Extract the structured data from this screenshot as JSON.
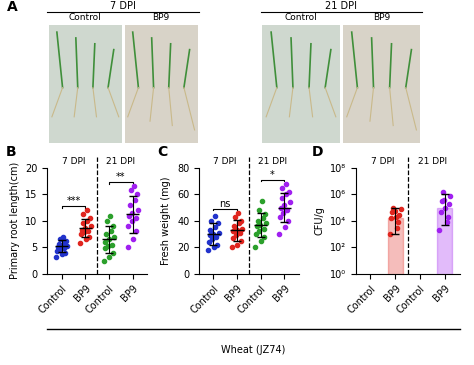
{
  "photo_panel": {
    "panel_label": "A",
    "groups": [
      {
        "title": "7 DPI",
        "labels": [
          "Control",
          "BP9"
        ]
      },
      {
        "title": "21 DPI",
        "labels": [
          "Control",
          "BP9"
        ]
      }
    ]
  },
  "chart_data": [
    {
      "type": "strip",
      "panel_label": "B",
      "ylabel": "Primary root length(cm)",
      "ylim": [
        0,
        20
      ],
      "yticks": [
        0,
        5,
        10,
        15,
        20
      ],
      "group_titles": [
        "7 DPI",
        "21 DPI"
      ],
      "groups": [
        {
          "category": "Control",
          "color": "#2233cc",
          "points": [
            3.2,
            3.8,
            4.0,
            4.3,
            4.5,
            4.8,
            5.0,
            5.1,
            5.3,
            5.6,
            5.9,
            6.2,
            6.5,
            7.0
          ],
          "mean": 5.2,
          "error": 1.1
        },
        {
          "category": "BP9",
          "color": "#e0261f",
          "points": [
            5.8,
            6.5,
            7.0,
            7.5,
            7.8,
            8.0,
            8.3,
            8.6,
            9.0,
            9.5,
            10.0,
            10.5,
            11.2,
            12.0
          ],
          "mean": 8.7,
          "error": 1.7
        },
        {
          "category": "Control",
          "color": "#2ca02c",
          "points": [
            2.5,
            3.2,
            4.0,
            4.8,
            5.2,
            5.5,
            6.0,
            6.5,
            7.0,
            7.5,
            8.0,
            9.0,
            10.0,
            11.0
          ],
          "mean": 6.5,
          "error": 2.5
        },
        {
          "category": "BP9",
          "color": "#a020f0",
          "points": [
            5.0,
            6.5,
            8.0,
            9.0,
            10.0,
            10.5,
            11.0,
            11.5,
            12.0,
            13.0,
            14.0,
            15.0,
            15.8,
            16.5
          ],
          "mean": 11.2,
          "error": 3.5
        }
      ],
      "comparisons": [
        {
          "groups": [
            0,
            1
          ],
          "label": "***"
        },
        {
          "groups": [
            2,
            3
          ],
          "label": "**"
        }
      ]
    },
    {
      "type": "strip",
      "panel_label": "C",
      "ylabel": "Fresh weight (mg)",
      "ylim": [
        0,
        80
      ],
      "yticks": [
        0,
        20,
        40,
        60,
        80
      ],
      "group_titles": [
        "7 DPI",
        "21 DPI"
      ],
      "groups": [
        {
          "category": "Control",
          "color": "#2233cc",
          "points": [
            18,
            20,
            22,
            24,
            26,
            28,
            29,
            30,
            31,
            33,
            35,
            38,
            40,
            44
          ],
          "mean": 30,
          "error": 8
        },
        {
          "category": "BP9",
          "color": "#e0261f",
          "points": [
            20,
            22,
            25,
            27,
            29,
            31,
            32,
            33,
            34,
            36,
            38,
            40,
            43,
            46
          ],
          "mean": 33,
          "error": 8
        },
        {
          "category": "Control",
          "color": "#2ca02c",
          "points": [
            20,
            25,
            28,
            30,
            32,
            34,
            36,
            37,
            38,
            40,
            42,
            45,
            48,
            55
          ],
          "mean": 37,
          "error": 9
        },
        {
          "category": "BP9",
          "color": "#a020f0",
          "points": [
            30,
            35,
            40,
            43,
            46,
            48,
            50,
            52,
            54,
            57,
            60,
            62,
            65,
            68
          ],
          "mean": 50,
          "error": 11
        }
      ],
      "comparisons": [
        {
          "groups": [
            0,
            1
          ],
          "label": "ns"
        },
        {
          "groups": [
            2,
            3
          ],
          "label": "*"
        }
      ]
    },
    {
      "type": "bar",
      "panel_label": "D",
      "ylabel": "CFU/g",
      "log": "y",
      "ylim": [
        1,
        100000000
      ],
      "yticks": [
        {
          "value": 1,
          "label": "10⁰"
        },
        {
          "value": 100,
          "label": "10²"
        },
        {
          "value": 10000,
          "label": "10⁴"
        },
        {
          "value": 1000000,
          "label": "10⁶"
        },
        {
          "value": 100000000,
          "label": "10⁸"
        }
      ],
      "group_titles": [
        "7 DPI",
        "21 DPI"
      ],
      "groups": [
        {
          "category": "Control",
          "color": "#2233cc",
          "points": [],
          "mean": null,
          "error": null
        },
        {
          "category": "BP9",
          "color": "#e0261f",
          "points": [
            1000,
            3000,
            8000,
            15000,
            20000,
            30000,
            50000,
            60000,
            80000,
            100000
          ],
          "mean": 15000,
          "error": [
            14000,
            85000
          ]
        },
        {
          "category": "Control",
          "color": "#2ca02c",
          "points": [],
          "mean": null,
          "error": null
        },
        {
          "category": "BP9",
          "color": "#a020f0",
          "points": [
            2000,
            8000,
            20000,
            50000,
            100000,
            200000,
            300000,
            400000,
            800000,
            1500000
          ],
          "mean": 100000,
          "error": [
            95000,
            900000
          ]
        }
      ],
      "comparisons": []
    }
  ],
  "footer": "Wheat (JZ74)"
}
